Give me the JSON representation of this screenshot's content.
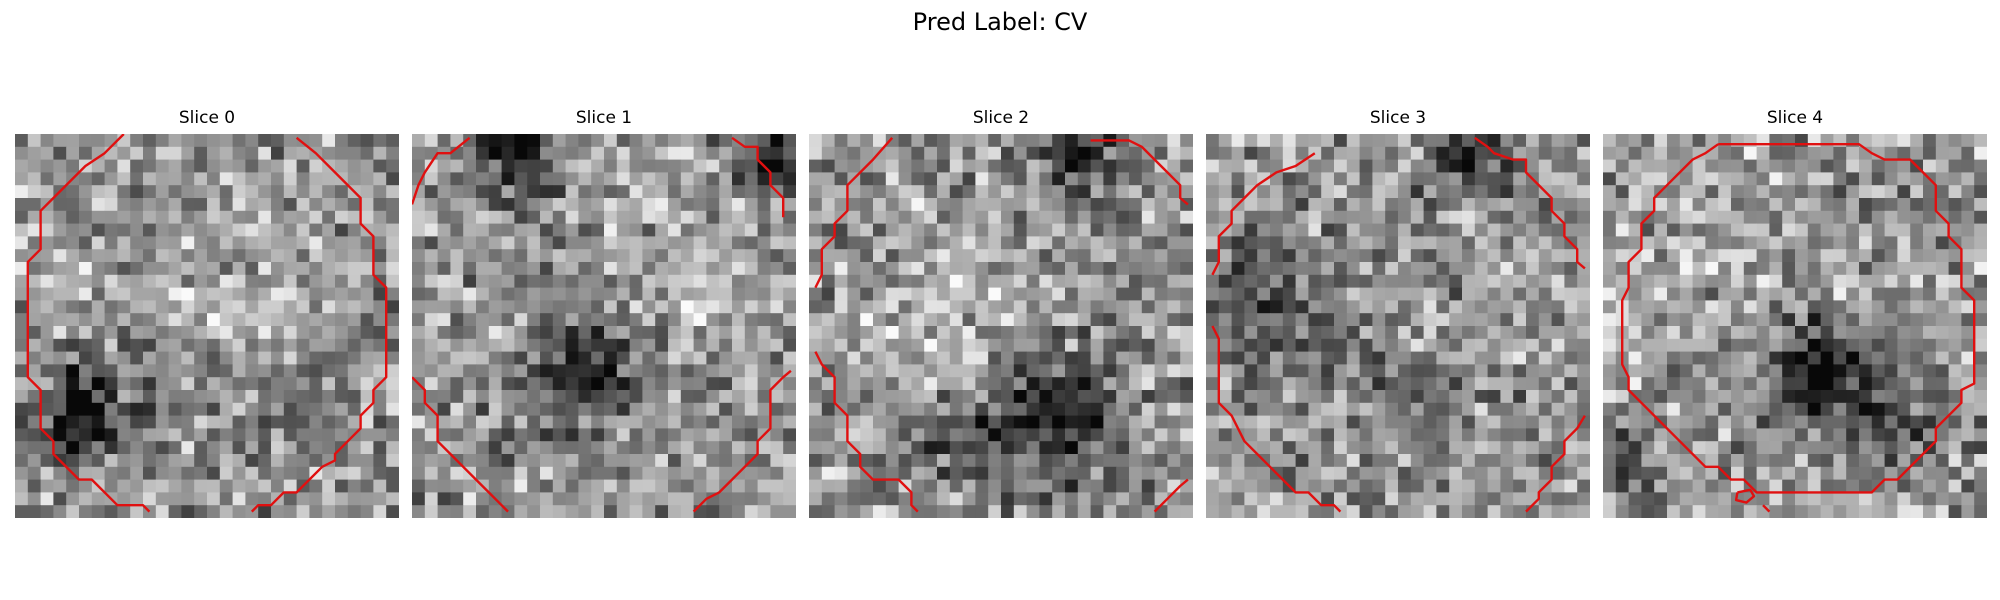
{
  "figure": {
    "title": "Pred Label: CV"
  },
  "panels": [
    {
      "title": "Slice 0"
    },
    {
      "title": "Slice 1"
    },
    {
      "title": "Slice 2"
    },
    {
      "title": "Slice 3"
    },
    {
      "title": "Slice 4"
    }
  ],
  "colors": {
    "contour": "#e01010",
    "background": "#ffffff"
  }
}
